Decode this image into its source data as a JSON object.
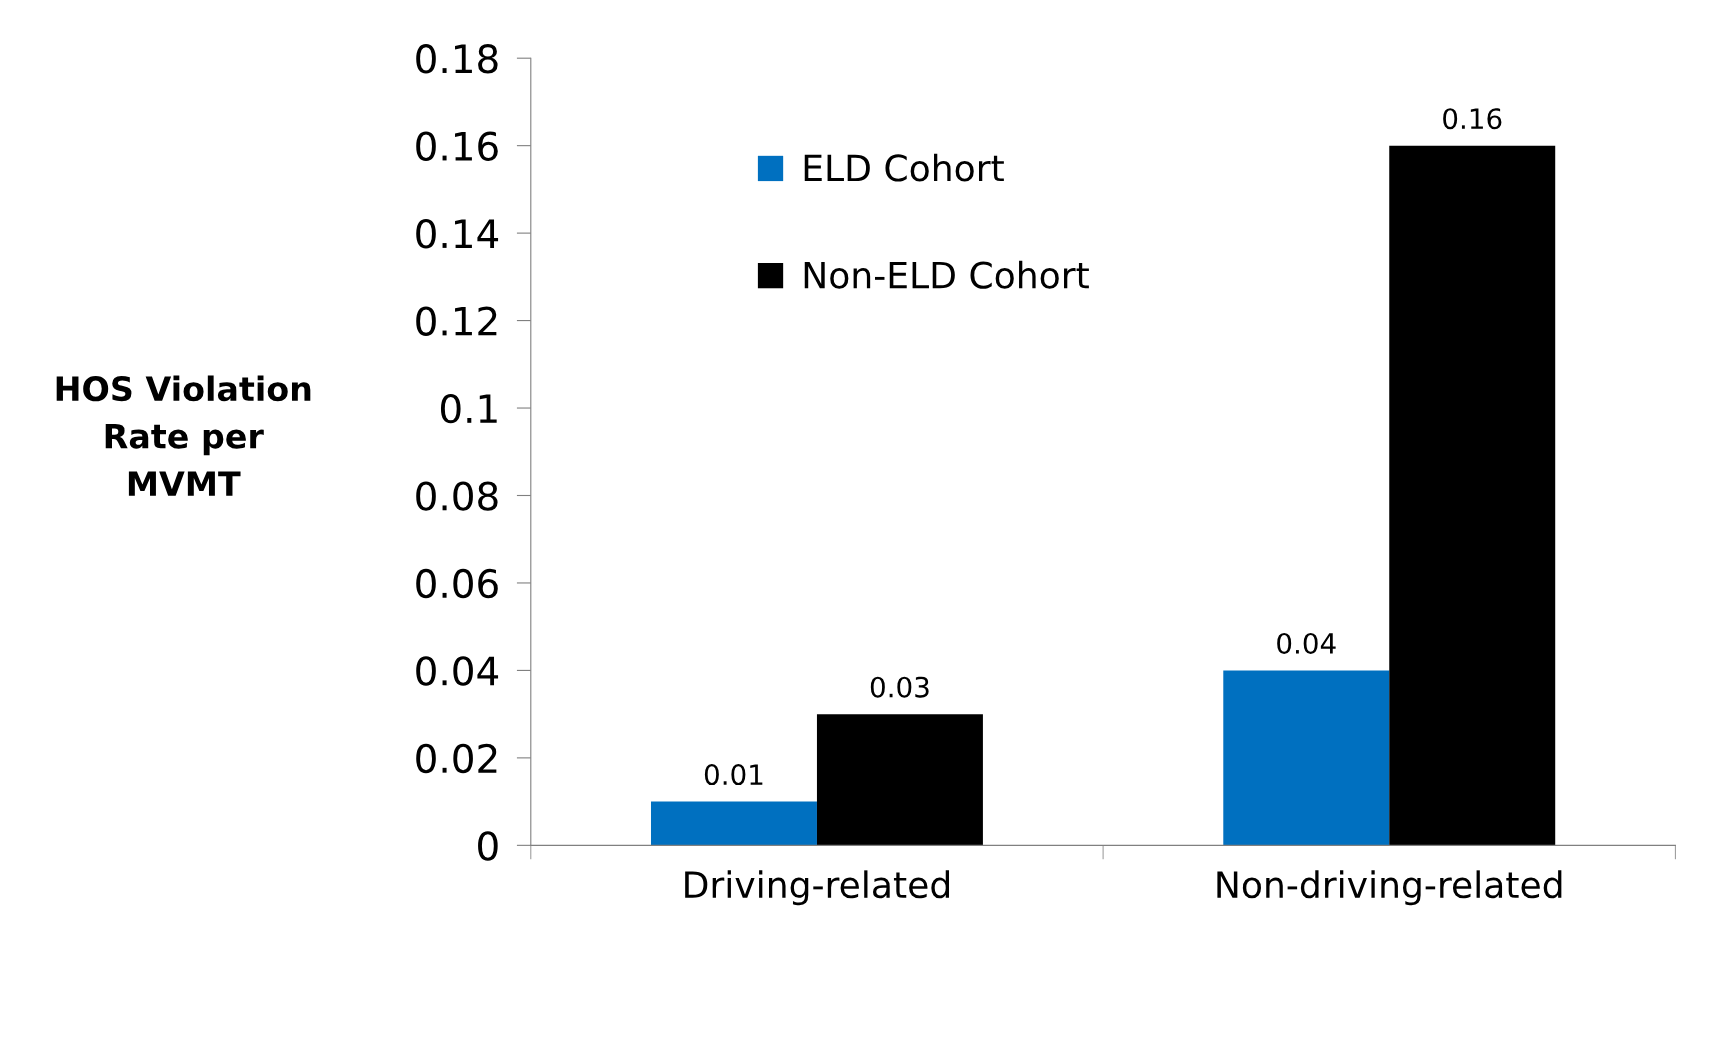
{
  "chart_data": {
    "type": "bar",
    "ylabel": "HOS Violation\nRate per\nMVMT",
    "categories": [
      "Driving-related",
      "Non-driving-related"
    ],
    "series": [
      {
        "name": "ELD Cohort",
        "color": "#0070c0",
        "values": [
          0.01,
          0.04
        ]
      },
      {
        "name": "Non-ELD Cohort",
        "color": "#000000",
        "values": [
          0.03,
          0.16
        ]
      }
    ],
    "ylim": [
      0,
      0.18
    ],
    "yticks": [
      0,
      0.02,
      0.04,
      0.06,
      0.08,
      0.1,
      0.12,
      0.14,
      0.16,
      0.18
    ],
    "data_labels": true,
    "legend": "top left",
    "grid": false
  }
}
